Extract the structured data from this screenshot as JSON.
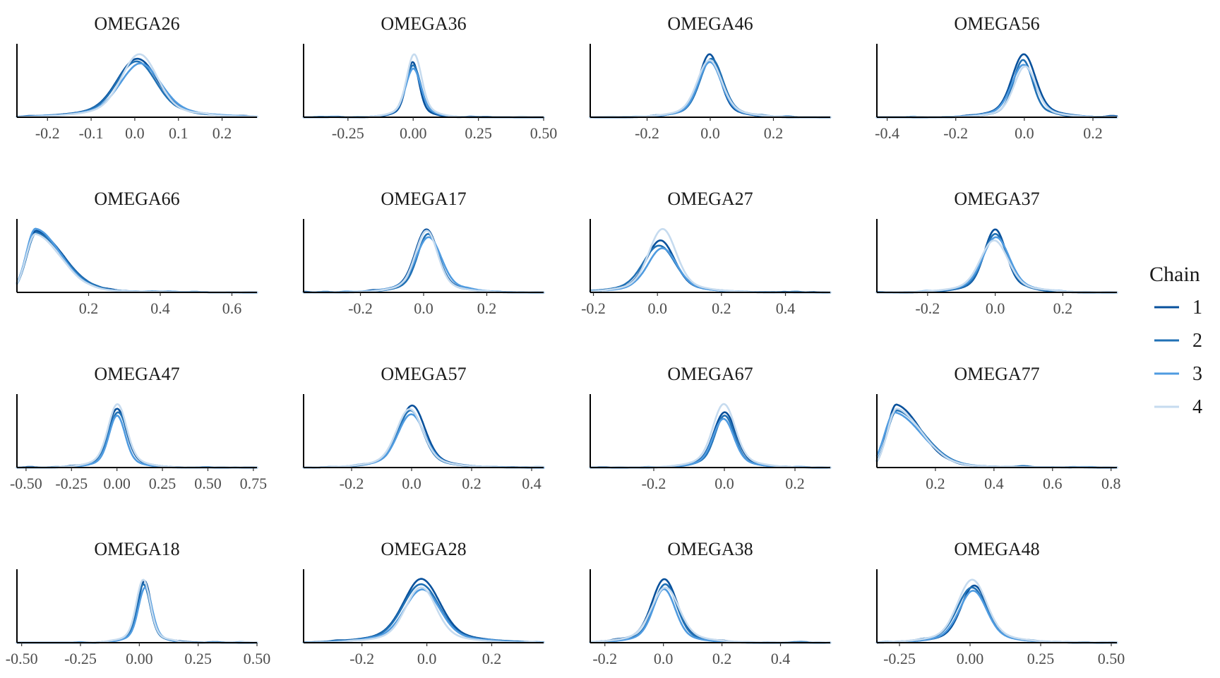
{
  "chart_data": {
    "type": "area",
    "legend": {
      "title": "Chain",
      "position": "right",
      "entries": [
        {
          "label": "1",
          "color": "#08519c"
        },
        {
          "label": "2",
          "color": "#2171b5"
        },
        {
          "label": "3",
          "color": "#4f9be0"
        },
        {
          "label": "4",
          "color": "#c6dbef"
        }
      ]
    },
    "panels": [
      {
        "title": "OMEGA26",
        "xlim": [
          -0.27,
          0.28
        ],
        "xticks": [
          "-0.2",
          "-0.1",
          "0.0",
          "0.1",
          "0.2"
        ],
        "xtick_values": [
          -0.2,
          -0.1,
          0.0,
          0.1,
          0.2
        ],
        "shape": "normal",
        "center": 0.01,
        "spread": 0.045,
        "peaks": [
          0.9,
          0.86,
          0.82,
          0.97
        ]
      },
      {
        "title": "OMEGA36",
        "xlim": [
          -0.42,
          0.5
        ],
        "xticks": [
          "-0.25",
          "0.00",
          "0.25",
          "0.50"
        ],
        "xtick_values": [
          -0.25,
          0.0,
          0.25,
          0.5
        ],
        "shape": "normal",
        "center": 0.0,
        "spread": 0.025,
        "peaks": [
          0.85,
          0.8,
          0.75,
          0.97
        ]
      },
      {
        "title": "OMEGA46",
        "xlim": [
          -0.38,
          0.38
        ],
        "xticks": [
          "-0.2",
          "0.0",
          "0.2"
        ],
        "xtick_values": [
          -0.2,
          0.0,
          0.2
        ],
        "shape": "normal",
        "center": 0.0,
        "spread": 0.035,
        "peaks": [
          0.97,
          0.9,
          0.85,
          0.88
        ]
      },
      {
        "title": "OMEGA56",
        "xlim": [
          -0.43,
          0.27
        ],
        "xticks": [
          "-0.4",
          "-0.2",
          "0.0",
          "0.2"
        ],
        "xtick_values": [
          -0.4,
          -0.2,
          0.0,
          0.2
        ],
        "shape": "normal",
        "center": 0.0,
        "spread": 0.03,
        "peaks": [
          0.97,
          0.88,
          0.8,
          0.78
        ]
      },
      {
        "title": "OMEGA66",
        "xlim": [
          0.0,
          0.67
        ],
        "xticks": [
          "0.2",
          "0.4",
          "0.6"
        ],
        "xtick_values": [
          0.2,
          0.4,
          0.6
        ],
        "shape": "skewed",
        "center": 0.055,
        "spread": 0.045,
        "peaks": [
          0.95,
          0.92,
          0.98,
          0.9
        ]
      },
      {
        "title": "OMEGA17",
        "xlim": [
          -0.38,
          0.38
        ],
        "xticks": [
          "-0.2",
          "0.0",
          "0.2"
        ],
        "xtick_values": [
          -0.2,
          0.0,
          0.2
        ],
        "shape": "normal",
        "center": 0.01,
        "spread": 0.035,
        "peaks": [
          0.97,
          0.9,
          0.85,
          0.95
        ]
      },
      {
        "title": "OMEGA27",
        "xlim": [
          -0.21,
          0.54
        ],
        "xticks": [
          "-0.2",
          "0.0",
          "0.2",
          "0.4"
        ],
        "xtick_values": [
          -0.2,
          0.0,
          0.2,
          0.4
        ],
        "shape": "normal",
        "center": 0.01,
        "spread": 0.045,
        "peaks": [
          0.8,
          0.72,
          0.68,
          0.97
        ]
      },
      {
        "title": "OMEGA37",
        "xlim": [
          -0.35,
          0.36
        ],
        "xticks": [
          "-0.2",
          "0.0",
          "0.2"
        ],
        "xtick_values": [
          -0.2,
          0.0,
          0.2
        ],
        "shape": "normal",
        "center": 0.0,
        "spread": 0.035,
        "peaks": [
          0.97,
          0.9,
          0.85,
          0.8
        ]
      },
      {
        "title": "OMEGA47",
        "xlim": [
          -0.55,
          0.77
        ],
        "xticks": [
          "-0.50",
          "-0.25",
          "0.00",
          "0.25",
          "0.50",
          "0.75"
        ],
        "xtick_values": [
          -0.5,
          -0.25,
          0.0,
          0.25,
          0.5,
          0.75
        ],
        "shape": "normal",
        "center": 0.0,
        "spread": 0.045,
        "peaks": [
          0.9,
          0.85,
          0.8,
          0.97
        ]
      },
      {
        "title": "OMEGA57",
        "xlim": [
          -0.36,
          0.44
        ],
        "xticks": [
          "-0.2",
          "0.0",
          "0.2",
          "0.4"
        ],
        "xtick_values": [
          -0.2,
          0.0,
          0.2,
          0.4
        ],
        "shape": "normal",
        "center": 0.0,
        "spread": 0.04,
        "peaks": [
          0.95,
          0.88,
          0.82,
          0.9
        ]
      },
      {
        "title": "OMEGA67",
        "xlim": [
          -0.38,
          0.3
        ],
        "xticks": [
          "-0.2",
          "0.0",
          "0.2"
        ],
        "xtick_values": [
          -0.2,
          0.0,
          0.2
        ],
        "shape": "normal",
        "center": 0.0,
        "spread": 0.03,
        "peaks": [
          0.85,
          0.8,
          0.75,
          0.97
        ]
      },
      {
        "title": "OMEGA77",
        "xlim": [
          0.0,
          0.82
        ],
        "xticks": [
          "0.2",
          "0.4",
          "0.6",
          "0.8"
        ],
        "xtick_values": [
          0.2,
          0.4,
          0.6,
          0.8
        ],
        "shape": "skewed",
        "center": 0.065,
        "spread": 0.055,
        "peaks": [
          0.97,
          0.88,
          0.85,
          0.9
        ]
      },
      {
        "title": "OMEGA18",
        "xlim": [
          -0.52,
          0.5
        ],
        "xticks": [
          "-0.50",
          "-0.25",
          "0.00",
          "0.25",
          "0.50"
        ],
        "xtick_values": [
          -0.5,
          -0.25,
          0.0,
          0.25,
          0.5
        ],
        "shape": "normal",
        "center": 0.02,
        "spread": 0.03,
        "peaks": [
          0.95,
          0.9,
          0.85,
          0.97
        ]
      },
      {
        "title": "OMEGA28",
        "xlim": [
          -0.38,
          0.36
        ],
        "xticks": [
          "-0.2",
          "0.0",
          "0.2"
        ],
        "xtick_values": [
          -0.2,
          0.0,
          0.2
        ],
        "shape": "normal",
        "center": -0.02,
        "spread": 0.05,
        "peaks": [
          0.97,
          0.9,
          0.82,
          0.85
        ]
      },
      {
        "title": "OMEGA38",
        "xlim": [
          -0.25,
          0.57
        ],
        "xticks": [
          "-0.2",
          "0.0",
          "0.2",
          "0.4"
        ],
        "xtick_values": [
          -0.2,
          0.0,
          0.2,
          0.4
        ],
        "shape": "normal",
        "center": 0.0,
        "spread": 0.04,
        "peaks": [
          0.97,
          0.9,
          0.82,
          0.85
        ]
      },
      {
        "title": "OMEGA48",
        "xlim": [
          -0.33,
          0.52
        ],
        "xticks": [
          "-0.25",
          "0.00",
          "0.25",
          "0.50"
        ],
        "xtick_values": [
          -0.25,
          0.0,
          0.25,
          0.5
        ],
        "shape": "normal",
        "center": 0.01,
        "spread": 0.045,
        "peaks": [
          0.88,
          0.85,
          0.8,
          0.97
        ]
      }
    ]
  }
}
